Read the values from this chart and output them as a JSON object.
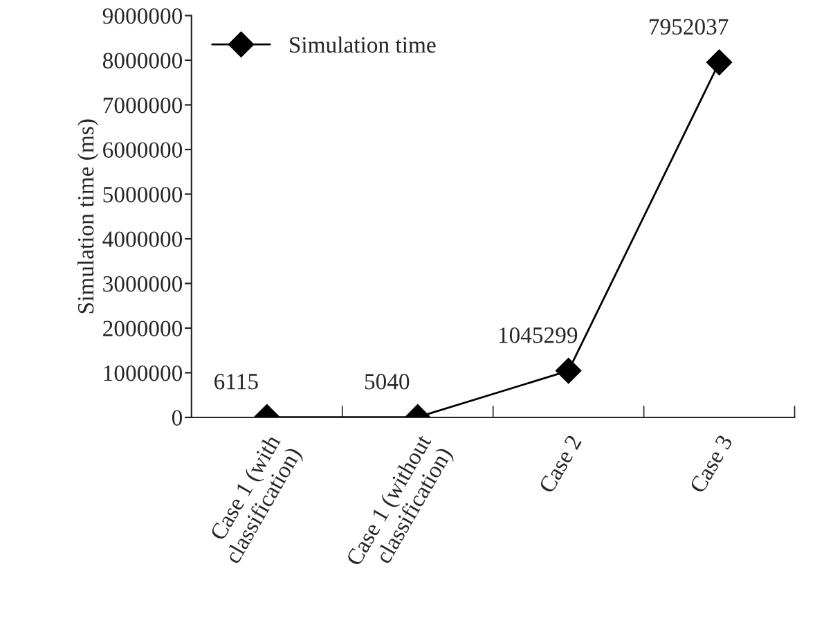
{
  "chart_data": {
    "type": "line",
    "ylabel": "Simulation time (ms)",
    "categories": [
      "Case 1 (with\nclassification)",
      "Case 1 (without\nclassification)",
      "Case 2",
      "Case 3"
    ],
    "series": [
      {
        "name": "Simulation time",
        "color": "#000000",
        "values": [
          6115,
          5040,
          1045299,
          7952037
        ]
      }
    ],
    "ylim": [
      0,
      9000000
    ],
    "yticks": [
      0,
      1000000,
      2000000,
      3000000,
      4000000,
      5000000,
      6000000,
      7000000,
      8000000,
      9000000
    ],
    "data_labels": true,
    "legend": "top left",
    "grid": false,
    "marker": "diamond",
    "line_style": "solid"
  }
}
